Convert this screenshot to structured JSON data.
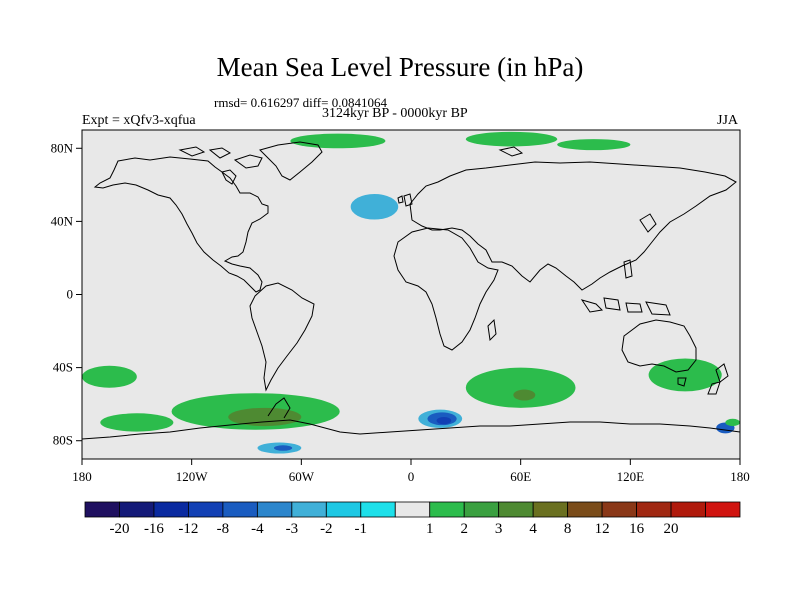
{
  "title": "Mean Sea Level Pressure (in hPa)",
  "stats": "rmsd= 0.616297 diff= 0.0841064",
  "period": "3124kyr BP - 0000kyr BP",
  "experiment": "Expt = xQfv3-xqfua",
  "season": "JJA",
  "map": {
    "land_fill": "#e8e8e8",
    "coast_color": "#000000",
    "lat_labels": [
      {
        "lat": 80,
        "label": "80N"
      },
      {
        "lat": 40,
        "label": "40N"
      },
      {
        "lat": 0,
        "label": "0"
      },
      {
        "lat": -40,
        "label": "40S"
      },
      {
        "lat": -80,
        "label": "80S"
      }
    ],
    "lon_labels": [
      {
        "lon": -180,
        "label": "180"
      },
      {
        "lon": -120,
        "label": "120W"
      },
      {
        "lon": -60,
        "label": "60W"
      },
      {
        "lon": 0,
        "label": "0"
      },
      {
        "lon": 60,
        "label": "60E"
      },
      {
        "lon": 120,
        "label": "120E"
      },
      {
        "lon": 180,
        "label": "180"
      }
    ],
    "anomalies": [
      {
        "name": "north-atlantic-low",
        "lon": -20,
        "lat": 48,
        "rlon": 13,
        "rlat": 7,
        "level": "-2"
      },
      {
        "name": "greenland-high",
        "lon": -40,
        "lat": 84,
        "rlon": 26,
        "rlat": 4,
        "level": "1"
      },
      {
        "name": "siberia-high",
        "lon": 55,
        "lat": 85,
        "rlon": 25,
        "rlat": 4,
        "level": "1"
      },
      {
        "name": "east-siberia-high",
        "lon": 100,
        "lat": 82,
        "rlon": 20,
        "rlat": 3,
        "level": "1"
      },
      {
        "name": "south-pacific-high-west",
        "lon": -165,
        "lat": -45,
        "rlon": 15,
        "rlat": 6,
        "level": "1"
      },
      {
        "name": "south-indian-high",
        "lon": 60,
        "lat": -51,
        "rlon": 30,
        "rlat": 11,
        "level": "1"
      },
      {
        "name": "south-indian-core",
        "lon": 62,
        "lat": -55,
        "rlon": 6,
        "rlat": 3,
        "level": "3"
      },
      {
        "name": "tasman-high",
        "lon": 150,
        "lat": -44,
        "rlon": 20,
        "rlat": 9,
        "level": "1"
      },
      {
        "name": "amundsen-high",
        "lon": -85,
        "lat": -64,
        "rlon": 46,
        "rlat": 10,
        "level": "1"
      },
      {
        "name": "amundsen-core",
        "lon": -80,
        "lat": -67,
        "rlon": 20,
        "rlat": 5,
        "level": "3"
      },
      {
        "name": "ross-high",
        "lon": -150,
        "lat": -70,
        "rlon": 20,
        "rlat": 5,
        "level": "1"
      },
      {
        "name": "weddell-low",
        "lon": -72,
        "lat": -84,
        "rlon": 12,
        "rlat": 3,
        "level": "-2"
      },
      {
        "name": "weddell-core",
        "lon": -70,
        "lat": -84,
        "rlon": 5,
        "rlat": 1.5,
        "level": "-4"
      },
      {
        "name": "dronning-maud-low",
        "lon": 16,
        "lat": -68,
        "rlon": 12,
        "rlat": 5,
        "level": "-2"
      },
      {
        "name": "dronning-maud-mid",
        "lon": 17,
        "lat": -68,
        "rlon": 8,
        "rlat": 3.5,
        "level": "-4"
      },
      {
        "name": "dronning-maud-core",
        "lon": 18,
        "lat": -69,
        "rlon": 4,
        "rlat": 2,
        "level": "-8"
      },
      {
        "name": "east-antarctic-low",
        "lon": 172,
        "lat": -73,
        "rlon": 5,
        "rlat": 3,
        "level": "-4"
      },
      {
        "name": "east-antarctic-high",
        "lon": 176,
        "lat": -70,
        "rlon": 4,
        "rlat": 2,
        "level": "1"
      }
    ]
  },
  "colorbar": {
    "colors": [
      "#1f1060",
      "#141a78",
      "#0a2aa0",
      "#1240b4",
      "#1a5cc0",
      "#2c86cc",
      "#40b0d8",
      "#1ec8e4",
      "#1ee0ea",
      "#e8e8e8",
      "#2cbc4c",
      "#3aa040",
      "#4e8a32",
      "#6a7020",
      "#7a4c1a",
      "#8a3818",
      "#a02812",
      "#b01a0c",
      "#d01410"
    ],
    "labels": [
      "-20",
      "-16",
      "-12",
      "-8",
      "-4",
      "-3",
      "-2",
      "-1",
      "1",
      "2",
      "3",
      "4",
      "8",
      "12",
      "16",
      "20"
    ]
  }
}
